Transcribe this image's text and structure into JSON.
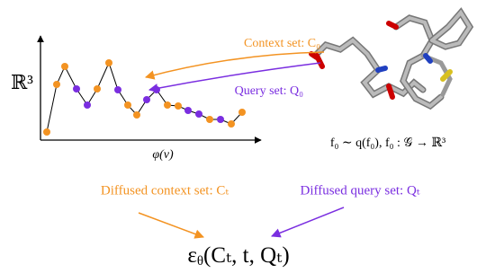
{
  "plot": {
    "y_label": "ℝ³",
    "x_label": "φ(v)"
  },
  "labels": {
    "context_set": "Context set: C₀",
    "query_set": "Query set: Q₀",
    "function": "f₀ ∼ q(f₀), f₀ : 𝒢 → ℝ³",
    "diffused_context": "Diffused context set: Cₜ",
    "diffused_query": "Diffused query set: Qₜ",
    "model": {
      "symbol": "ε",
      "subscript": "θ",
      "args": "(Cₜ, t, Qₜ)"
    }
  }
}
